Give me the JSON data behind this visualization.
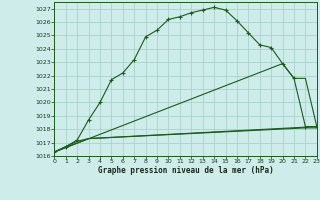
{
  "title": "Graphe pression niveau de la mer (hPa)",
  "bg_color": "#ceecea",
  "grid_color": "#aad4cc",
  "line_color": "#1a5c1a",
  "xlim": [
    0,
    23
  ],
  "ylim": [
    1016,
    1027.5
  ],
  "ytick_vals": [
    1016,
    1017,
    1018,
    1019,
    1020,
    1021,
    1022,
    1023,
    1024,
    1025,
    1026,
    1027
  ],
  "xtick_vals": [
    0,
    1,
    2,
    3,
    4,
    5,
    6,
    7,
    8,
    9,
    10,
    11,
    12,
    13,
    14,
    15,
    16,
    17,
    18,
    19,
    20,
    21,
    22,
    23
  ],
  "curve1_x": [
    0,
    1,
    2,
    3,
    4,
    5,
    6,
    7,
    8,
    9,
    10,
    11,
    12,
    13,
    14,
    15,
    16,
    17,
    18,
    19,
    20,
    21,
    22,
    23
  ],
  "curve1_y": [
    1016.3,
    1016.7,
    1017.2,
    1018.7,
    1020.0,
    1021.7,
    1022.2,
    1023.2,
    1024.9,
    1025.4,
    1026.2,
    1026.4,
    1026.7,
    1026.9,
    1027.1,
    1026.9,
    1026.1,
    1025.2,
    1024.3,
    1024.1,
    1022.9,
    1021.8,
    1018.2,
    1018.2
  ],
  "curve2_x": [
    0,
    20,
    21,
    22,
    23
  ],
  "curve2_y": [
    1016.3,
    1022.9,
    1021.8,
    1021.8,
    1018.2
  ],
  "curve3_x": [
    0,
    1,
    2,
    3,
    22,
    23
  ],
  "curve3_y": [
    1016.3,
    1016.7,
    1017.1,
    1017.3,
    1018.1,
    1018.1
  ],
  "curve4_x": [
    0,
    3,
    23
  ],
  "curve4_y": [
    1016.3,
    1017.3,
    1018.2
  ]
}
